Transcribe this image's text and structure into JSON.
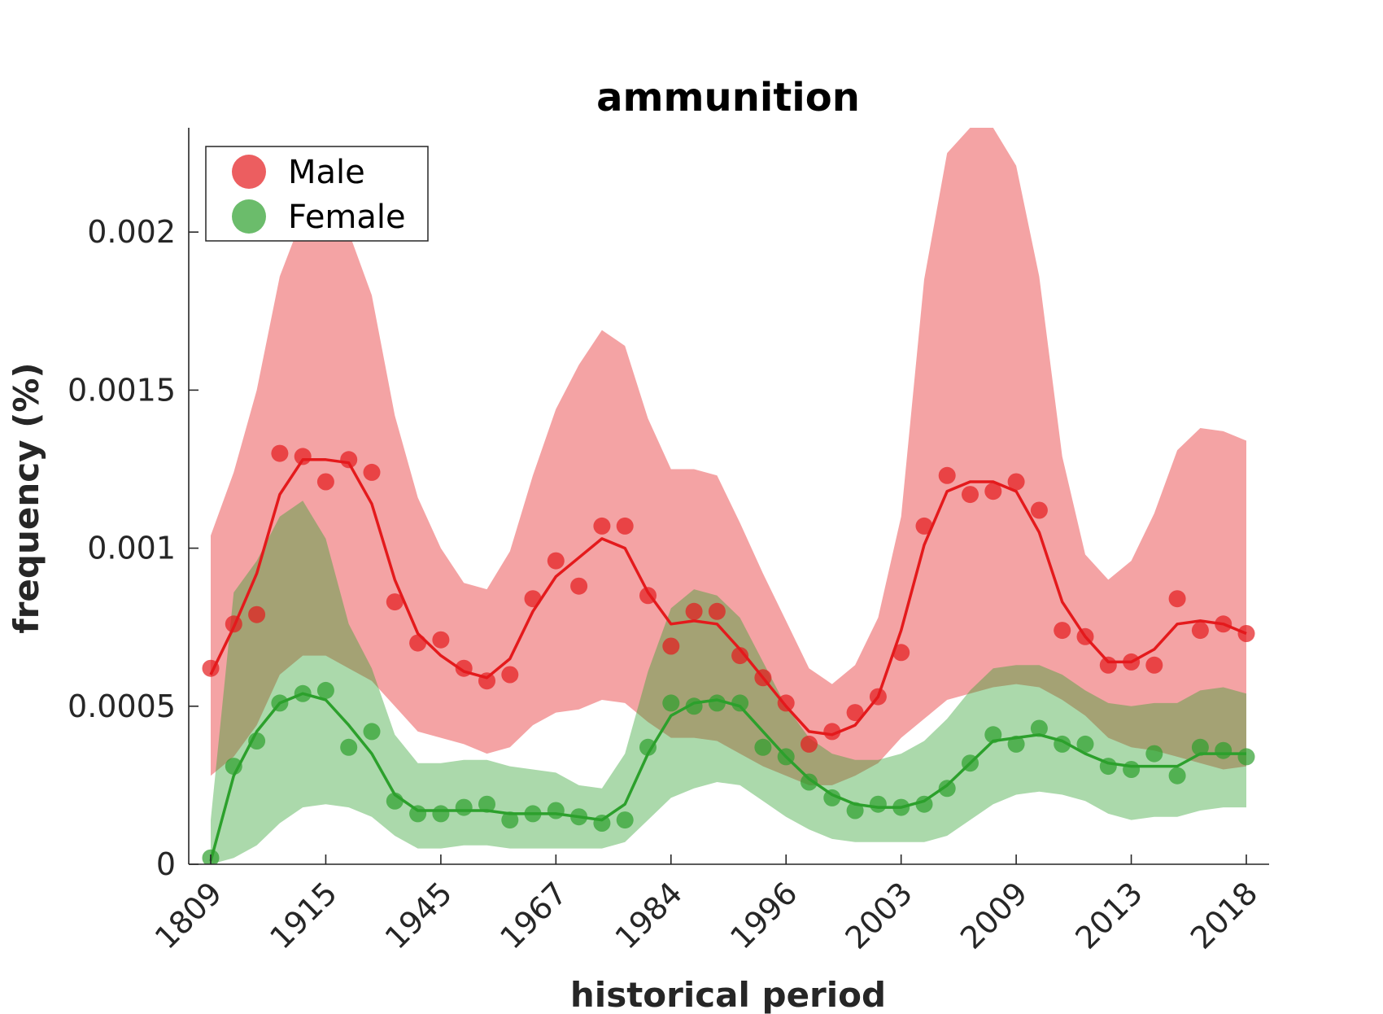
{
  "chart_data": {
    "type": "line",
    "title": "ammunition",
    "xlabel": "historical period",
    "ylabel": "frequency (%)",
    "ylim": [
      0,
      0.00233
    ],
    "yticks": [
      0,
      0.0005,
      0.001,
      0.0015,
      0.002
    ],
    "ytick_labels": [
      "0",
      "0.0005",
      "0.001",
      "0.0015",
      "0.002"
    ],
    "xtick_labels": [
      "1809",
      "1915",
      "1945",
      "1967",
      "1984",
      "1996",
      "2003",
      "2009",
      "2013",
      "2018"
    ],
    "xtick_positions": [
      1,
      6,
      11,
      16,
      21,
      26,
      31,
      36,
      41,
      46
    ],
    "x": [
      1,
      2,
      3,
      4,
      5,
      6,
      7,
      8,
      9,
      10,
      11,
      12,
      13,
      14,
      15,
      16,
      17,
      18,
      19,
      20,
      21,
      22,
      23,
      24,
      25,
      26,
      27,
      28,
      29,
      30,
      31,
      32,
      33,
      34,
      35,
      36,
      37,
      38,
      39,
      40,
      41,
      42,
      43,
      44,
      45,
      46
    ],
    "legend": {
      "position": "top-left",
      "entries": [
        "Male",
        "Female"
      ]
    },
    "grid": false,
    "series": [
      {
        "name": "Male",
        "color": "#e41a1c",
        "band_color": "#f4a3a4",
        "points": [
          0.00062,
          0.00076,
          0.00079,
          0.0013,
          0.00129,
          0.00121,
          0.00128,
          0.00124,
          0.00083,
          0.0007,
          0.00071,
          0.00062,
          0.00058,
          0.0006,
          0.00084,
          0.00096,
          0.00088,
          0.00107,
          0.00107,
          0.00085,
          0.00069,
          0.0008,
          0.0008,
          0.00066,
          0.00059,
          0.00051,
          0.00038,
          0.00042,
          0.00048,
          0.00053,
          0.00067,
          0.00107,
          0.00123,
          0.00117,
          0.00118,
          0.00121,
          0.00112,
          0.00074,
          0.00072,
          0.00063,
          0.00064,
          0.00063,
          0.00084,
          0.00074,
          0.00076,
          0.00073
        ],
        "fit": [
          0.0006,
          0.00075,
          0.00092,
          0.00117,
          0.00128,
          0.00128,
          0.00127,
          0.00114,
          0.0009,
          0.00073,
          0.00066,
          0.00061,
          0.00059,
          0.00065,
          0.0008,
          0.00091,
          0.00097,
          0.00103,
          0.001,
          0.00086,
          0.00076,
          0.00077,
          0.00076,
          0.00068,
          0.00059,
          0.0005,
          0.00042,
          0.00041,
          0.00044,
          0.00053,
          0.00074,
          0.00101,
          0.00118,
          0.00121,
          0.00121,
          0.00118,
          0.00105,
          0.00083,
          0.00072,
          0.00064,
          0.00064,
          0.00068,
          0.00076,
          0.00077,
          0.00076,
          0.00073
        ],
        "band_upper": [
          0.00104,
          0.00124,
          0.0015,
          0.00186,
          0.00205,
          0.0021,
          0.002,
          0.0018,
          0.00142,
          0.00116,
          0.001,
          0.00089,
          0.00087,
          0.00099,
          0.00123,
          0.00144,
          0.00158,
          0.00169,
          0.00164,
          0.00141,
          0.00125,
          0.00125,
          0.00123,
          0.00108,
          0.00092,
          0.00077,
          0.00062,
          0.00057,
          0.00063,
          0.00078,
          0.0011,
          0.00185,
          0.00225,
          0.00233,
          0.00233,
          0.00221,
          0.00186,
          0.00129,
          0.00098,
          0.0009,
          0.00096,
          0.00111,
          0.00131,
          0.00138,
          0.00137,
          0.00134
        ],
        "band_lower": [
          0.00028,
          0.00034,
          0.00044,
          0.0006,
          0.00066,
          0.00066,
          0.00062,
          0.00058,
          0.0005,
          0.00042,
          0.0004,
          0.00038,
          0.00035,
          0.00037,
          0.00044,
          0.00048,
          0.00049,
          0.00052,
          0.00051,
          0.00045,
          0.0004,
          0.0004,
          0.00039,
          0.00035,
          0.00031,
          0.00028,
          0.00025,
          0.00025,
          0.00028,
          0.00032,
          0.0004,
          0.00046,
          0.00052,
          0.00054,
          0.00056,
          0.00057,
          0.00056,
          0.00052,
          0.00047,
          0.0004,
          0.00037,
          0.00036,
          0.00034,
          0.00032,
          0.0003,
          0.00031
        ]
      },
      {
        "name": "Female",
        "color": "#2ca02c",
        "band_color": "#a6d9a0",
        "points": [
          2e-05,
          0.00031,
          0.00039,
          0.00051,
          0.00054,
          0.00055,
          0.00037,
          0.00042,
          0.0002,
          0.00016,
          0.00016,
          0.00018,
          0.00019,
          0.00014,
          0.00016,
          0.00017,
          0.00015,
          0.00013,
          0.00014,
          0.00037,
          0.00051,
          0.0005,
          0.00051,
          0.00051,
          0.00037,
          0.00034,
          0.00026,
          0.00021,
          0.00017,
          0.00019,
          0.00018,
          0.00019,
          0.00024,
          0.00032,
          0.00041,
          0.00038,
          0.00043,
          0.00038,
          0.00038,
          0.00031,
          0.0003,
          0.00035,
          0.00028,
          0.00037,
          0.00036,
          0.00034
        ],
        "fit": [
          1e-05,
          0.00028,
          0.00042,
          0.00051,
          0.00054,
          0.00052,
          0.00044,
          0.00035,
          0.00022,
          0.00017,
          0.00017,
          0.00017,
          0.00017,
          0.00016,
          0.00016,
          0.00016,
          0.00015,
          0.00014,
          0.00019,
          0.00035,
          0.00047,
          0.00051,
          0.00052,
          0.0005,
          0.00042,
          0.00034,
          0.00027,
          0.00022,
          0.00019,
          0.00018,
          0.00018,
          0.0002,
          0.00025,
          0.00032,
          0.00039,
          0.0004,
          0.00041,
          0.00039,
          0.00035,
          0.00032,
          0.00031,
          0.00031,
          0.00031,
          0.00035,
          0.00035,
          0.00035
        ],
        "band_upper": [
          0.00014,
          0.00086,
          0.00096,
          0.0011,
          0.00115,
          0.00103,
          0.00076,
          0.00062,
          0.00041,
          0.00032,
          0.00032,
          0.00033,
          0.00033,
          0.00031,
          0.0003,
          0.00029,
          0.00025,
          0.00024,
          0.00035,
          0.00061,
          0.00081,
          0.00087,
          0.00085,
          0.00078,
          0.00064,
          0.0005,
          0.0004,
          0.00035,
          0.00033,
          0.00033,
          0.00035,
          0.00039,
          0.00046,
          0.00055,
          0.00062,
          0.00063,
          0.00063,
          0.0006,
          0.00055,
          0.00051,
          0.0005,
          0.00051,
          0.00051,
          0.00055,
          0.00056,
          0.00054
        ],
        "band_lower": [
          0.0,
          2e-05,
          6e-05,
          0.00013,
          0.00018,
          0.00019,
          0.00018,
          0.00015,
          9e-05,
          5e-05,
          5e-05,
          6e-05,
          6e-05,
          5e-05,
          5e-05,
          5e-05,
          5e-05,
          5e-05,
          7e-05,
          0.00014,
          0.00021,
          0.00024,
          0.00026,
          0.00025,
          0.0002,
          0.00015,
          0.00011,
          8e-05,
          7e-05,
          7e-05,
          7e-05,
          7e-05,
          9e-05,
          0.00014,
          0.00019,
          0.00022,
          0.00023,
          0.00022,
          0.0002,
          0.00016,
          0.00014,
          0.00015,
          0.00015,
          0.00017,
          0.00018,
          0.00018
        ]
      }
    ]
  }
}
